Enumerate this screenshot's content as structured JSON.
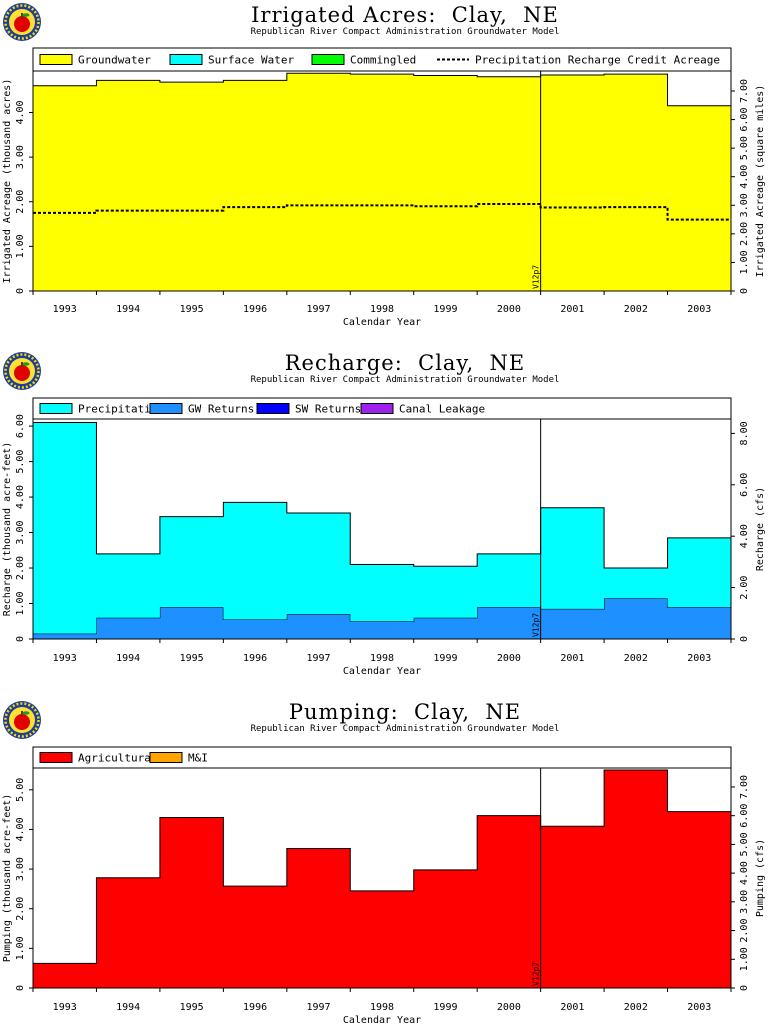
{
  "charts": [
    {
      "title": "Irrigated Acres:  Clay,  NE",
      "subtitle": "Republican River Compact Administration Groundwater Model",
      "marker_label": "V12p7",
      "legend": [
        {
          "label": "Groundwater",
          "color": "#ffff00",
          "style": "box"
        },
        {
          "label": "Surface Water",
          "color": "#00ffff",
          "style": "box"
        },
        {
          "label": "Commingled",
          "color": "#00ff00",
          "style": "box"
        },
        {
          "label": "Precipitation Recharge Credit Acreage",
          "color": "#000000",
          "style": "dash"
        }
      ],
      "ylabel": "Irrigated Acreage (thousand acres)",
      "y2label": "Irrigated Acreage (square miles)",
      "xlabel": "Calendar Year",
      "y_ticks": [
        "0",
        "1.00",
        "2.00",
        "3.00",
        "4.00"
      ],
      "y2_ticks": [
        "0",
        "1.00",
        "2.00",
        "3.00",
        "4.00",
        "5.00",
        "6.00",
        "7.00"
      ]
    },
    {
      "title": "Recharge:  Clay,  NE",
      "subtitle": "Republican River Compact Administration Groundwater Model",
      "marker_label": "V12p7",
      "legend": [
        {
          "label": "Precipitation",
          "color": "#00ffff",
          "style": "box"
        },
        {
          "label": "GW Returns",
          "color": "#1e90ff",
          "style": "box"
        },
        {
          "label": "SW Returns",
          "color": "#0000ff",
          "style": "box"
        },
        {
          "label": "Canal Leakage",
          "color": "#a020f0",
          "style": "box"
        }
      ],
      "ylabel": "Recharge (thousand acre-feet)",
      "y2label": "Recharge (cfs)",
      "xlabel": "Calendar Year",
      "y_ticks": [
        "0",
        "1.00",
        "2.00",
        "3.00",
        "4.00",
        "5.00",
        "6.00"
      ],
      "y2_ticks": [
        "0",
        "2.00",
        "4.00",
        "6.00",
        "8.00"
      ]
    },
    {
      "title": "Pumping:  Clay,  NE",
      "subtitle": "Republican River Compact Administration Groundwater Model",
      "marker_label": "V12p7",
      "legend": [
        {
          "label": "Agricultural",
          "color": "#ff0000",
          "style": "box"
        },
        {
          "label": "M&I",
          "color": "#ffa500",
          "style": "box"
        }
      ],
      "ylabel": "Pumping (thousand acre-feet)",
      "y2label": "Pumping (cfs)",
      "xlabel": "Calendar Year",
      "y_ticks": [
        "0",
        "1.00",
        "2.00",
        "3.00",
        "4.00",
        "5.00"
      ],
      "y2_ticks": [
        "0",
        "1.00",
        "2.00",
        "3.00",
        "4.00",
        "5.00",
        "6.00",
        "7.00"
      ]
    }
  ],
  "chart_data": [
    {
      "type": "area",
      "title": "Irrigated Acres:  Clay,  NE",
      "xlabel": "Calendar Year",
      "ylabel": "Irrigated Acreage (thousand acres)",
      "categories": [
        "1993",
        "1994",
        "1995",
        "1996",
        "1997",
        "1998",
        "1999",
        "2000",
        "2001",
        "2002",
        "2003"
      ],
      "ylim": [
        0,
        4.93
      ],
      "y2lim": [
        0,
        7.7
      ],
      "y_ticks": [
        0,
        1,
        2,
        3,
        4
      ],
      "y2_ticks": [
        0,
        1,
        2,
        3,
        4,
        5,
        6,
        7
      ],
      "marker_year": "2001",
      "series": [
        {
          "name": "Groundwater",
          "kind": "stacked",
          "color": "#ffff00",
          "values": [
            4.6,
            4.72,
            4.68,
            4.72,
            4.88,
            4.86,
            4.83,
            4.8,
            4.84,
            4.86,
            4.15
          ]
        },
        {
          "name": "Surface Water",
          "kind": "stacked",
          "color": "#00ffff",
          "values": [
            0,
            0,
            0,
            0,
            0,
            0,
            0,
            0,
            0,
            0,
            0
          ]
        },
        {
          "name": "Commingled",
          "kind": "stacked",
          "color": "#00ff00",
          "values": [
            0,
            0,
            0,
            0,
            0,
            0,
            0,
            0,
            0,
            0,
            0
          ]
        },
        {
          "name": "Precipitation Recharge Credit Acreage",
          "kind": "dashed",
          "color": "#000000",
          "values": [
            1.75,
            1.8,
            1.8,
            1.88,
            1.92,
            1.92,
            1.9,
            1.95,
            1.87,
            1.88,
            1.6
          ]
        }
      ]
    },
    {
      "type": "area",
      "title": "Recharge:  Clay,  NE",
      "xlabel": "Calendar Year",
      "ylabel": "Recharge (thousand acre-feet)",
      "categories": [
        "1993",
        "1994",
        "1995",
        "1996",
        "1997",
        "1998",
        "1999",
        "2000",
        "2001",
        "2002",
        "2003"
      ],
      "ylim": [
        0,
        6.2
      ],
      "y2lim": [
        0,
        8.56
      ],
      "y_ticks": [
        0,
        1,
        2,
        3,
        4,
        5,
        6
      ],
      "y2_ticks": [
        0,
        2,
        4,
        6,
        8
      ],
      "marker_year": "2001",
      "series": [
        {
          "name": "GW Returns",
          "kind": "stacked",
          "color": "#1e90ff",
          "values": [
            0.15,
            0.6,
            0.9,
            0.55,
            0.7,
            0.5,
            0.6,
            0.9,
            0.85,
            1.15,
            0.9
          ]
        },
        {
          "name": "SW Returns",
          "kind": "stacked",
          "color": "#0000ff",
          "values": [
            0,
            0,
            0,
            0,
            0,
            0,
            0,
            0,
            0,
            0,
            0
          ]
        },
        {
          "name": "Canal Leakage",
          "kind": "stacked",
          "color": "#a020f0",
          "values": [
            0,
            0,
            0,
            0,
            0,
            0,
            0,
            0,
            0,
            0,
            0
          ]
        },
        {
          "name": "Precipitation",
          "kind": "stacked",
          "color": "#00ffff",
          "values": [
            5.95,
            1.8,
            2.55,
            3.3,
            2.85,
            1.6,
            1.45,
            1.5,
            2.85,
            0.85,
            1.95
          ]
        }
      ]
    },
    {
      "type": "area",
      "title": "Pumping:  Clay,  NE",
      "xlabel": "Calendar Year",
      "ylabel": "Pumping (thousand acre-feet)",
      "categories": [
        "1993",
        "1994",
        "1995",
        "1996",
        "1997",
        "1998",
        "1999",
        "2000",
        "2001",
        "2002",
        "2003"
      ],
      "ylim": [
        0,
        5.55
      ],
      "y2lim": [
        0,
        7.66
      ],
      "y_ticks": [
        0,
        1,
        2,
        3,
        4,
        5
      ],
      "y2_ticks": [
        0,
        1,
        2,
        3,
        4,
        5,
        6,
        7
      ],
      "marker_year": "2001",
      "series": [
        {
          "name": "Agricultural",
          "kind": "stacked",
          "color": "#ff0000",
          "values": [
            0.62,
            2.78,
            4.3,
            2.57,
            3.52,
            2.45,
            2.98,
            4.35,
            4.08,
            5.5,
            4.45
          ]
        },
        {
          "name": "M&I",
          "kind": "stacked",
          "color": "#ffa500",
          "values": [
            0,
            0,
            0,
            0,
            0,
            0,
            0,
            0,
            0,
            0,
            0
          ]
        }
      ]
    }
  ]
}
